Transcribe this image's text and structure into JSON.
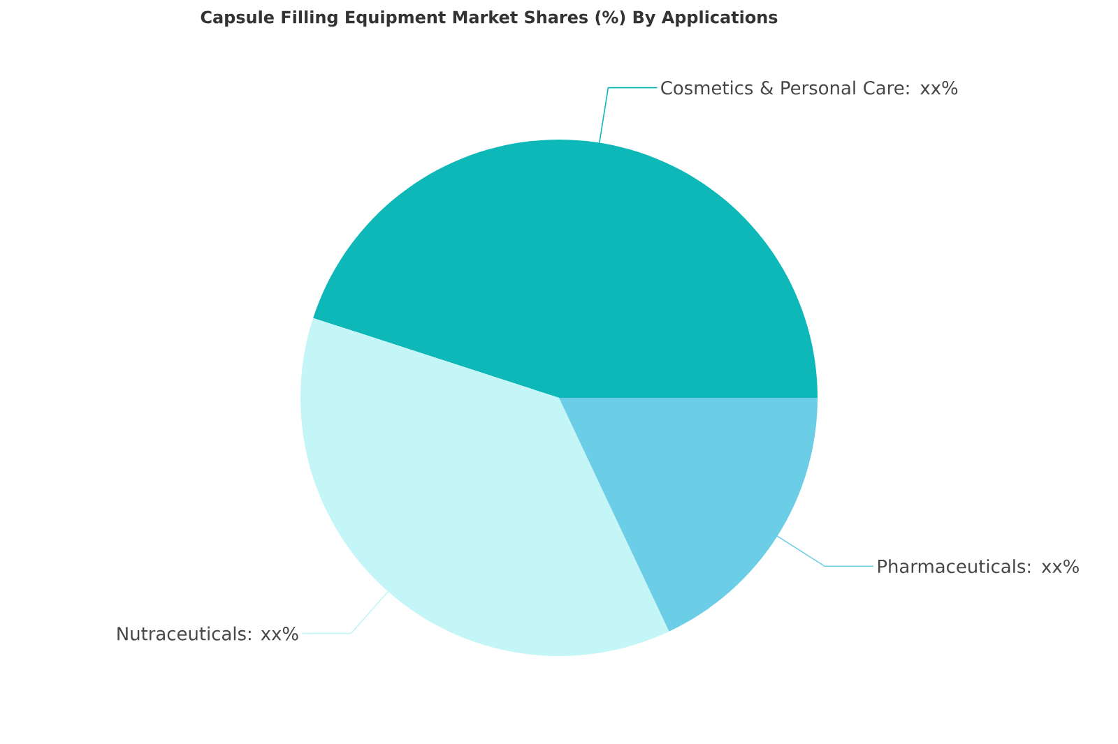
{
  "chart_data": {
    "type": "pie",
    "title": "Capsule Filling Equipment Market Shares (%) By Applications",
    "categories": [
      "Cosmetics & Personal Care",
      "Nutraceuticals",
      "Pharmaceuticals"
    ],
    "values": [
      45,
      37,
      18
    ],
    "value_labels": [
      ": xx%",
      ": xx%",
      ": xx%"
    ],
    "colors": [
      "#0fb8b8",
      "#c4f5f7",
      "#6ccde6"
    ]
  }
}
